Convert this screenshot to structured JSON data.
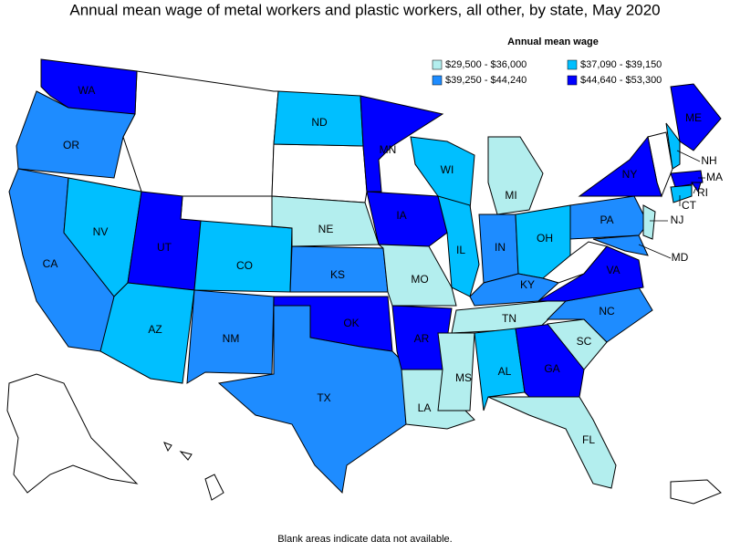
{
  "title": "Annual mean wage of metal workers and plastic workers, all other, by state, May 2020",
  "legend": {
    "title": "Annual mean wage",
    "items": [
      {
        "label": "$29,500 - $36,000",
        "color": "#b3eeee"
      },
      {
        "label": "$37,090 - $39,150",
        "color": "#00bfff"
      },
      {
        "label": "$39,250 - $44,240",
        "color": "#1e8cff"
      },
      {
        "label": "$44,640 - $53,300",
        "color": "#0000ff"
      }
    ]
  },
  "states": [
    {
      "label": "WA",
      "bin": 3
    },
    {
      "label": "OR",
      "bin": 2
    },
    {
      "label": "CA",
      "bin": 2
    },
    {
      "label": "NV",
      "bin": 1
    },
    {
      "label": "UT",
      "bin": 3
    },
    {
      "label": "AZ",
      "bin": 1
    },
    {
      "label": "CO",
      "bin": 1
    },
    {
      "label": "NM",
      "bin": 2
    },
    {
      "label": "ND",
      "bin": 1
    },
    {
      "label": "NE",
      "bin": 0
    },
    {
      "label": "KS",
      "bin": 2
    },
    {
      "label": "OK",
      "bin": 3
    },
    {
      "label": "TX",
      "bin": 2
    },
    {
      "label": "MN",
      "bin": 3
    },
    {
      "label": "IA",
      "bin": 3
    },
    {
      "label": "MO",
      "bin": 0
    },
    {
      "label": "AR",
      "bin": 3
    },
    {
      "label": "LA",
      "bin": 0
    },
    {
      "label": "WI",
      "bin": 1
    },
    {
      "label": "IL",
      "bin": 1
    },
    {
      "label": "MI",
      "bin": 0
    },
    {
      "label": "IN",
      "bin": 2
    },
    {
      "label": "OH",
      "bin": 1
    },
    {
      "label": "KY",
      "bin": 2
    },
    {
      "label": "TN",
      "bin": 0
    },
    {
      "label": "MS",
      "bin": 0
    },
    {
      "label": "AL",
      "bin": 1
    },
    {
      "label": "GA",
      "bin": 3
    },
    {
      "label": "FL",
      "bin": 0
    },
    {
      "label": "SC",
      "bin": 0
    },
    {
      "label": "NC",
      "bin": 2
    },
    {
      "label": "VA",
      "bin": 3
    },
    {
      "label": "PA",
      "bin": 2
    },
    {
      "label": "NY",
      "bin": 3
    },
    {
      "label": "ME",
      "bin": 3
    },
    {
      "label": "NH",
      "bin": 1
    },
    {
      "label": "MA",
      "bin": 3
    },
    {
      "label": "RI",
      "bin": 3
    },
    {
      "label": "CT",
      "bin": 1
    },
    {
      "label": "NJ",
      "bin": 0
    },
    {
      "label": "MD",
      "bin": 2
    }
  ],
  "note": "Blank areas indicate data not available."
}
